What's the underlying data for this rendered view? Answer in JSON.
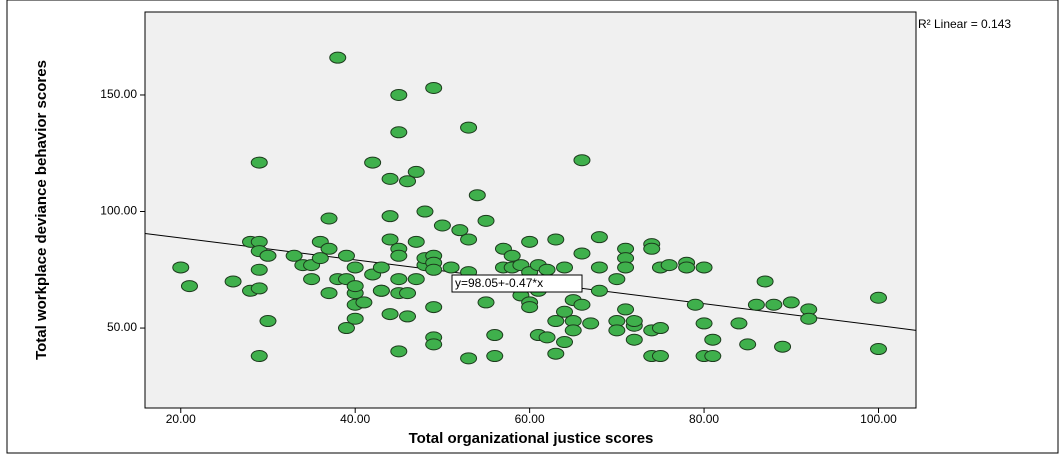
{
  "chart_data": {
    "type": "scatter",
    "x_label": "Total organizational justice scores",
    "y_label": "Total workplace deviance behavior scores",
    "fit_label": "y=98.05+-0.47*x",
    "r2_label": "R² Linear = 0.143",
    "fit": {
      "intercept": 98.05,
      "slope": -0.47
    },
    "color": "#3fb04c",
    "xlim": [
      15.9,
      104.3
    ],
    "ylim": [
      15.7,
      185.6
    ],
    "xticks": [
      {
        "value": 20,
        "label": "20.00"
      },
      {
        "value": 40,
        "label": "40.00"
      },
      {
        "value": 60,
        "label": "60.00"
      },
      {
        "value": 80,
        "label": "80.00"
      },
      {
        "value": 100,
        "label": "100.00"
      }
    ],
    "yticks": [
      {
        "value": 50,
        "label": "50.00"
      },
      {
        "value": 100,
        "label": "100.00"
      },
      {
        "value": 150,
        "label": "150.00"
      }
    ],
    "x": [
      20,
      21,
      26,
      28,
      29,
      29,
      29,
      28,
      29,
      29,
      29,
      30,
      30,
      33,
      34,
      35,
      35,
      36,
      36,
      37,
      37,
      37,
      38,
      38,
      39,
      39,
      39,
      40,
      40,
      40,
      40,
      40,
      41,
      42,
      42,
      43,
      43,
      43,
      44,
      44,
      44,
      44,
      45,
      45,
      45,
      45,
      45,
      45,
      45,
      46,
      46,
      46,
      47,
      47,
      47,
      48,
      48,
      48,
      49,
      49,
      49,
      49,
      49,
      49,
      49,
      50,
      51,
      52,
      53,
      53,
      53,
      53,
      54,
      54,
      55,
      55,
      56,
      56,
      57,
      57,
      58,
      58,
      59,
      59,
      60,
      60,
      60,
      60,
      61,
      61,
      61,
      62,
      62,
      63,
      63,
      63,
      64,
      64,
      64,
      65,
      65,
      65,
      66,
      66,
      66,
      67,
      68,
      68,
      68,
      70,
      70,
      70,
      71,
      71,
      71,
      71,
      72,
      72,
      72,
      74,
      74,
      74,
      74,
      75,
      75,
      75,
      76,
      78,
      78,
      79,
      80,
      80,
      80,
      81,
      81,
      84,
      85,
      86,
      87,
      88,
      89,
      90,
      92,
      92,
      100,
      100
    ],
    "values": [
      76,
      68,
      70,
      87,
      87,
      121,
      38,
      66,
      75,
      67,
      83,
      81,
      53,
      81,
      77,
      77,
      71,
      87,
      80,
      97,
      65,
      84,
      166,
      71,
      50,
      81,
      71,
      65,
      60,
      54,
      76,
      68,
      61,
      121,
      73,
      76,
      66,
      66,
      98,
      88,
      114,
      56,
      150,
      134,
      40,
      84,
      81,
      65,
      71,
      113,
      55,
      65,
      117,
      87,
      71,
      100,
      77,
      80,
      153,
      81,
      78,
      75,
      59,
      46,
      43,
      94,
      76,
      92,
      136,
      37,
      74,
      88,
      107,
      68,
      96,
      61,
      47,
      38,
      84,
      76,
      81,
      76,
      77,
      64,
      87,
      61,
      59,
      74,
      47,
      77,
      66,
      75,
      46,
      88,
      53,
      39,
      57,
      76,
      44,
      53,
      62,
      49,
      122,
      82,
      60,
      52,
      89,
      76,
      66,
      71,
      53,
      49,
      84,
      80,
      76,
      58,
      51,
      45,
      53,
      86,
      84,
      49,
      38,
      76,
      50,
      38,
      77,
      78,
      76,
      60,
      76,
      52,
      38,
      38,
      45,
      52,
      43,
      60,
      70,
      60,
      42,
      61,
      58,
      54,
      63,
      41
    ]
  }
}
